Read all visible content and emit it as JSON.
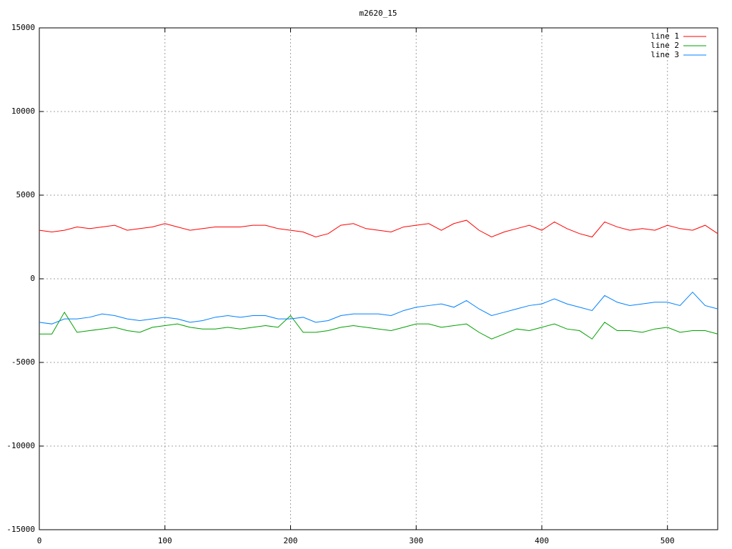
{
  "chart_data": {
    "type": "line",
    "title": "m2620_15",
    "x": [
      0,
      10,
      20,
      30,
      40,
      50,
      60,
      70,
      80,
      90,
      100,
      110,
      120,
      130,
      140,
      150,
      160,
      170,
      180,
      190,
      200,
      210,
      220,
      230,
      240,
      250,
      260,
      270,
      280,
      290,
      300,
      310,
      320,
      330,
      340,
      350,
      360,
      370,
      380,
      390,
      400,
      410,
      420,
      430,
      440,
      450,
      460,
      470,
      480,
      490,
      500,
      510,
      520,
      530,
      540
    ],
    "series": [
      {
        "name": "line 1",
        "color": "#ff0000",
        "values": [
          2900,
          2800,
          2900,
          3100,
          3000,
          3100,
          3200,
          2900,
          3000,
          3100,
          3300,
          3100,
          2900,
          3000,
          3100,
          3100,
          3100,
          3200,
          3200,
          3000,
          2900,
          2800,
          2500,
          2700,
          3200,
          3300,
          3000,
          2900,
          2800,
          3100,
          3200,
          3300,
          2900,
          3300,
          3500,
          2900,
          2500,
          2800,
          3000,
          3200,
          2900,
          3400,
          3000,
          2700,
          2500,
          3400,
          3100,
          2900,
          3000,
          2900,
          3200,
          3000,
          2900,
          3200,
          2700
        ]
      },
      {
        "name": "line 2",
        "color": "#00a000",
        "values": [
          -3300,
          -3300,
          -2000,
          -3200,
          -3100,
          -3000,
          -2900,
          -3100,
          -3200,
          -2900,
          -2800,
          -2700,
          -2900,
          -3000,
          -3000,
          -2900,
          -3000,
          -2900,
          -2800,
          -2900,
          -2200,
          -3200,
          -3200,
          -3100,
          -2900,
          -2800,
          -2900,
          -3000,
          -3100,
          -2900,
          -2700,
          -2700,
          -2900,
          -2800,
          -2700,
          -3200,
          -3600,
          -3300,
          -3000,
          -3100,
          -2900,
          -2700,
          -3000,
          -3100,
          -3600,
          -2600,
          -3100,
          -3100,
          -3200,
          -3000,
          -2900,
          -3200,
          -3100,
          -3100,
          -3300
        ]
      },
      {
        "name": "line 3",
        "color": "#0080ff",
        "values": [
          -2600,
          -2700,
          -2400,
          -2400,
          -2300,
          -2100,
          -2200,
          -2400,
          -2500,
          -2400,
          -2300,
          -2400,
          -2600,
          -2500,
          -2300,
          -2200,
          -2300,
          -2200,
          -2200,
          -2400,
          -2400,
          -2300,
          -2600,
          -2500,
          -2200,
          -2100,
          -2100,
          -2100,
          -2200,
          -1900,
          -1700,
          -1600,
          -1500,
          -1700,
          -1300,
          -1800,
          -2200,
          -2000,
          -1800,
          -1600,
          -1500,
          -1200,
          -1500,
          -1700,
          -1900,
          -1000,
          -1400,
          -1600,
          -1500,
          -1400,
          -1400,
          -1600,
          -800,
          -1600,
          -1800
        ]
      }
    ],
    "xlim": [
      0,
      540
    ],
    "xticks": [
      0,
      100,
      200,
      300,
      400,
      500
    ],
    "ylim": [
      -15000,
      15000
    ],
    "yticks": [
      -15000,
      -10000,
      -5000,
      0,
      5000,
      10000,
      15000
    ],
    "grid": true,
    "legend": "top-right"
  }
}
